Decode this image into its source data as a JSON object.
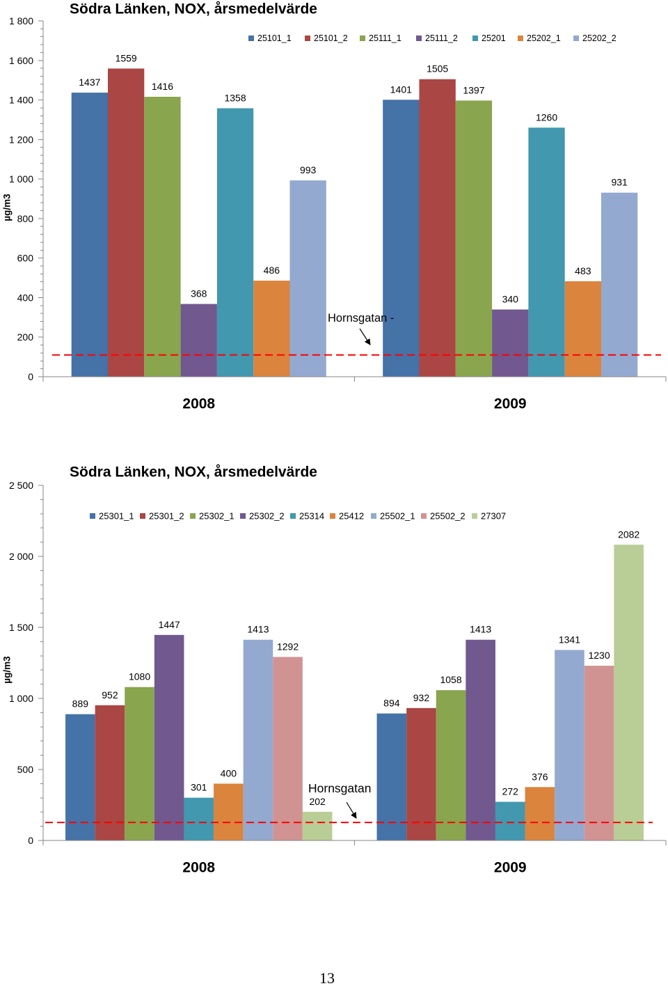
{
  "page_number": "13",
  "chart_data": [
    {
      "type": "bar",
      "title": "Södra Länken, NOX, årsmedelvärde",
      "xlabel": "",
      "ylabel": "µg/m3",
      "categories": [
        "2008",
        "2009"
      ],
      "ylim": [
        0,
        1800
      ],
      "yticks": [
        0,
        200,
        400,
        600,
        800,
        1000,
        1200,
        1400,
        1600,
        1800
      ],
      "ytick_labels": [
        "0",
        "200",
        "400",
        "600",
        "800",
        "1 000",
        "1 200",
        "1 400",
        "1 600",
        "1 800"
      ],
      "grid": false,
      "legend_position": "top-right",
      "series": [
        {
          "name": "25101_1",
          "color": "#4572A7",
          "values": [
            1437,
            1401
          ]
        },
        {
          "name": "25101_2",
          "color": "#AA4643",
          "values": [
            1559,
            1505
          ]
        },
        {
          "name": "25111_1",
          "color": "#89A54E",
          "values": [
            1416,
            1397
          ]
        },
        {
          "name": "25111_2",
          "color": "#71588F",
          "values": [
            368,
            340
          ]
        },
        {
          "name": "25201",
          "color": "#4198AF",
          "values": [
            1358,
            1260
          ]
        },
        {
          "name": "25202_1",
          "color": "#DB843D",
          "values": [
            486,
            483
          ]
        },
        {
          "name": "25202_2",
          "color": "#93A9CF",
          "values": [
            993,
            931
          ]
        }
      ],
      "reference_line": {
        "value": 110,
        "color": "#FF0000"
      },
      "annotation": "Hornsgatan -"
    },
    {
      "type": "bar",
      "title": "Södra Länken, NOX, årsmedelvärde",
      "xlabel": "",
      "ylabel": "µg/m3",
      "categories": [
        "2008",
        "2009"
      ],
      "ylim": [
        0,
        2500
      ],
      "yticks": [
        0,
        500,
        1000,
        1500,
        2000,
        2500
      ],
      "ytick_labels": [
        "0",
        "500",
        "1 000",
        "1 500",
        "2 000",
        "2 500"
      ],
      "grid": false,
      "legend_position": "top",
      "series": [
        {
          "name": "25301_1",
          "color": "#4572A7",
          "values": [
            889,
            894
          ]
        },
        {
          "name": "25301_2",
          "color": "#AA4643",
          "values": [
            952,
            932
          ]
        },
        {
          "name": "25302_1",
          "color": "#89A54E",
          "values": [
            1080,
            1058
          ]
        },
        {
          "name": "25302_2",
          "color": "#71588F",
          "values": [
            1447,
            1413
          ]
        },
        {
          "name": "25314",
          "color": "#4198AF",
          "values": [
            301,
            272
          ]
        },
        {
          "name": "25412",
          "color": "#DB843D",
          "values": [
            400,
            376
          ]
        },
        {
          "name": "25502_1",
          "color": "#93A9CF",
          "values": [
            1413,
            1341
          ]
        },
        {
          "name": "25502_2",
          "color": "#D19392",
          "values": [
            1292,
            1230
          ]
        },
        {
          "name": "27307",
          "color": "#B9CD96",
          "values": [
            202,
            2082
          ]
        }
      ],
      "reference_line": {
        "value": 127,
        "color": "#FF0000"
      },
      "annotation": "Hornsgatan"
    }
  ]
}
